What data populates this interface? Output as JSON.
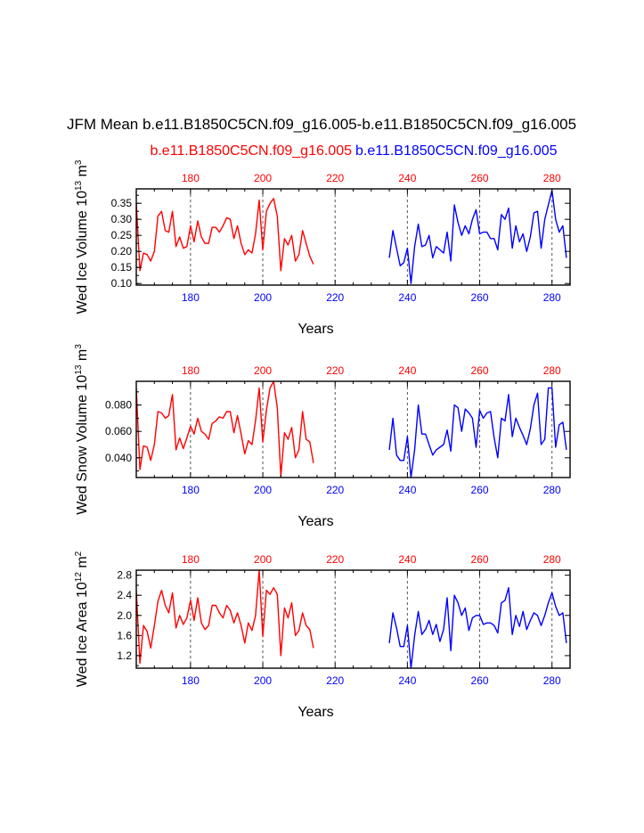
{
  "page": {
    "title": "JFM Mean b.e11.B1850C5CN.f09_g16.005-b.e11.B1850C5CN.f09_g16.005",
    "case1_label": "b.e11.B1850C5CN.f09_g16.005",
    "case2_label": "b.e11.B1850C5CN.f09_g16.005"
  },
  "colors": {
    "case1": "#ff0000",
    "case2": "#0000ff",
    "axis": "#000000",
    "refline": "#555555"
  },
  "chart_data": [
    {
      "type": "line",
      "ylabel": "Wed Ice Volume 10",
      "ylabel_exp": "13",
      "ylabel_unit": " m",
      "ylabel_unit_exp": "3",
      "xlabel": "Years",
      "xlim": [
        165,
        285
      ],
      "ylim": [
        0.095,
        0.395
      ],
      "yticks": [
        0.1,
        0.15,
        0.2,
        0.25,
        0.3,
        0.35
      ],
      "ytick_labels": [
        "0.10",
        "0.15",
        "0.20",
        "0.25",
        "0.30",
        "0.35"
      ],
      "xticks": [
        180,
        200,
        220,
        240,
        260,
        280
      ],
      "xtick_labels": [
        "180",
        "200",
        "220",
        "240",
        "260",
        "280"
      ],
      "dashed_x": [
        180,
        200,
        220,
        240,
        260,
        280
      ],
      "series": [
        {
          "name": "b.e11.B1850C5CN.f09_g16.005",
          "color": "#ff0000",
          "x0": 165,
          "values": [
            0.35,
            0.14,
            0.195,
            0.19,
            0.17,
            0.2,
            0.31,
            0.325,
            0.265,
            0.26,
            0.325,
            0.215,
            0.245,
            0.21,
            0.215,
            0.28,
            0.23,
            0.295,
            0.245,
            0.225,
            0.225,
            0.275,
            0.275,
            0.26,
            0.28,
            0.305,
            0.3,
            0.24,
            0.28,
            0.225,
            0.19,
            0.205,
            0.195,
            0.255,
            0.36,
            0.205,
            0.325,
            0.35,
            0.365,
            0.31,
            0.14,
            0.24,
            0.22,
            0.25,
            0.17,
            0.19,
            0.265,
            0.225,
            0.185,
            0.16
          ]
        },
        {
          "name": "b.e11.B1850C5CN.f09_g16.005",
          "color": "#0000ff",
          "x0": 235,
          "values": [
            0.18,
            0.265,
            0.21,
            0.155,
            0.165,
            0.21,
            0.1,
            0.215,
            0.285,
            0.215,
            0.22,
            0.25,
            0.18,
            0.215,
            0.205,
            0.195,
            0.26,
            0.17,
            0.345,
            0.29,
            0.25,
            0.28,
            0.255,
            0.3,
            0.33,
            0.255,
            0.26,
            0.26,
            0.24,
            0.24,
            0.205,
            0.315,
            0.3,
            0.335,
            0.21,
            0.28,
            0.23,
            0.255,
            0.2,
            0.245,
            0.32,
            0.325,
            0.21,
            0.3,
            0.345,
            0.39,
            0.3,
            0.26,
            0.28,
            0.18
          ]
        }
      ]
    },
    {
      "type": "line",
      "ylabel": "Wed Snow Volume 10",
      "ylabel_exp": "13",
      "ylabel_unit": " m",
      "ylabel_unit_exp": "3",
      "xlabel": "Years",
      "xlim": [
        165,
        285
      ],
      "ylim": [
        0.025,
        0.098
      ],
      "yticks": [
        0.04,
        0.06,
        0.08
      ],
      "ytick_labels": [
        "0.040",
        "0.060",
        "0.080"
      ],
      "xticks": [
        180,
        200,
        220,
        240,
        260,
        280
      ],
      "xtick_labels": [
        "180",
        "200",
        "220",
        "240",
        "260",
        "280"
      ],
      "dashed_x": [
        180,
        200,
        220,
        240,
        260,
        280
      ],
      "series": [
        {
          "name": "b.e11.B1850C5CN.f09_g16.005",
          "color": "#ff0000",
          "x0": 165,
          "values": [
            0.093,
            0.031,
            0.049,
            0.048,
            0.038,
            0.05,
            0.075,
            0.074,
            0.07,
            0.072,
            0.088,
            0.046,
            0.055,
            0.047,
            0.055,
            0.064,
            0.058,
            0.07,
            0.06,
            0.058,
            0.054,
            0.066,
            0.068,
            0.071,
            0.07,
            0.075,
            0.075,
            0.059,
            0.072,
            0.058,
            0.043,
            0.053,
            0.05,
            0.068,
            0.093,
            0.052,
            0.076,
            0.093,
            0.098,
            0.078,
            0.026,
            0.059,
            0.054,
            0.063,
            0.04,
            0.046,
            0.075,
            0.054,
            0.052,
            0.036
          ]
        },
        {
          "name": "b.e11.B1850C5CN.f09_g16.005",
          "color": "#0000ff",
          "x0": 235,
          "values": [
            0.046,
            0.07,
            0.042,
            0.038,
            0.038,
            0.056,
            0.025,
            0.046,
            0.08,
            0.058,
            0.058,
            0.05,
            0.042,
            0.046,
            0.048,
            0.05,
            0.061,
            0.045,
            0.08,
            0.078,
            0.06,
            0.077,
            0.074,
            0.07,
            0.048,
            0.076,
            0.07,
            0.074,
            0.075,
            0.055,
            0.04,
            0.07,
            0.068,
            0.088,
            0.056,
            0.07,
            0.063,
            0.057,
            0.05,
            0.062,
            0.08,
            0.089,
            0.05,
            0.054,
            0.093,
            0.093,
            0.048,
            0.065,
            0.067,
            0.046
          ]
        }
      ]
    },
    {
      "type": "line",
      "ylabel": "Wed Ice Area 10",
      "ylabel_exp": "12",
      "ylabel_unit": " m",
      "ylabel_unit_exp": "2",
      "xlabel": "Years",
      "xlim": [
        165,
        285
      ],
      "ylim": [
        0.95,
        2.9
      ],
      "yticks": [
        1.2,
        1.6,
        2.0,
        2.4,
        2.8
      ],
      "ytick_labels": [
        "1.2",
        "1.6",
        "2.0",
        "2.4",
        "2.8"
      ],
      "xticks": [
        180,
        200,
        220,
        240,
        260,
        280
      ],
      "xtick_labels": [
        "180",
        "200",
        "220",
        "240",
        "260",
        "280"
      ],
      "dashed_x": [
        180,
        200,
        220,
        240,
        260,
        280
      ],
      "series": [
        {
          "name": "b.e11.B1850C5CN.f09_g16.005",
          "color": "#ff0000",
          "x0": 165,
          "values": [
            2.5,
            1.05,
            1.8,
            1.68,
            1.35,
            1.8,
            2.28,
            2.5,
            2.2,
            2.05,
            2.45,
            1.75,
            2.0,
            1.82,
            1.95,
            2.3,
            1.9,
            2.35,
            1.85,
            1.72,
            1.8,
            2.2,
            2.2,
            2.05,
            1.95,
            2.2,
            2.1,
            1.85,
            2.05,
            1.8,
            1.45,
            1.85,
            1.7,
            2.0,
            2.9,
            1.58,
            2.5,
            2.42,
            2.55,
            2.42,
            1.2,
            2.15,
            1.95,
            2.25,
            1.6,
            1.7,
            2.05,
            1.8,
            1.72,
            1.35
          ]
        },
        {
          "name": "b.e11.B1850C5CN.f09_g16.005",
          "color": "#0000ff",
          "x0": 235,
          "values": [
            1.45,
            2.05,
            1.75,
            1.38,
            1.38,
            1.8,
            0.95,
            1.6,
            2.08,
            1.62,
            1.72,
            1.9,
            1.62,
            1.82,
            1.48,
            1.72,
            2.35,
            1.3,
            2.4,
            2.25,
            2.0,
            2.15,
            1.7,
            1.95,
            2.0,
            2.0,
            1.82,
            1.85,
            1.85,
            1.8,
            1.65,
            2.25,
            2.3,
            2.55,
            1.62,
            2.0,
            1.78,
            2.08,
            1.72,
            1.9,
            2.05,
            2.0,
            1.8,
            2.0,
            2.25,
            2.45,
            2.18,
            2.0,
            2.05,
            1.45
          ]
        }
      ]
    }
  ]
}
